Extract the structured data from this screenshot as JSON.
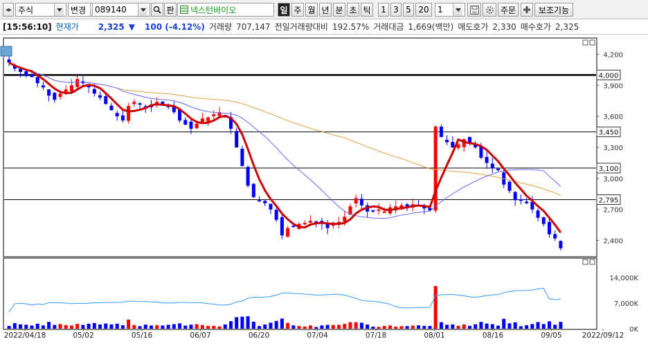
{
  "toolbar": {
    "market": "주식",
    "change_label": "변경",
    "code": "089140",
    "pan_label": "판",
    "stock_name": "넥스턴바이오",
    "periods": [
      "일",
      "주",
      "월",
      "년",
      "분",
      "초",
      "틱"
    ],
    "active_period": "일",
    "intervals": [
      "1",
      "3",
      "5",
      "20"
    ],
    "count": "1",
    "order_label": "주문",
    "aux_label": "보조기능"
  },
  "quote": {
    "time": "[15:56:10]",
    "price_label": "현재가",
    "price": "2,325",
    "change": "100 (-4.12%)",
    "volume_label": "거래량",
    "volume": "707,147",
    "prev_ratio_label": "전일거래량대비",
    "prev_ratio": "192.57%",
    "amount_label": "거래대금",
    "amount": "1,669(백만)",
    "ask_label": "매도호가",
    "ask": "2,330",
    "bid_label": "매수호가",
    "bid": "2,325"
  },
  "colors": {
    "up": "#ff0000",
    "down": "#0000ff",
    "ma5": "#cc0000",
    "ma20": "#6666ff",
    "ma60": "#e0a040",
    "volume_ma": "#3399ff"
  },
  "chart_data": {
    "type": "candlestick",
    "symbol": "089140",
    "name": "넥스턴바이오",
    "x_ticks": [
      "2022/04/18",
      "05/02",
      "05/16",
      "06/07",
      "06/20",
      "07/04",
      "07/18",
      "08/01",
      "08/16",
      "09/05",
      "2022/09/12"
    ],
    "price_axis": [
      "4,200",
      "3,900",
      "3,600",
      "3,300",
      "3,000",
      "2,700",
      "2,400"
    ],
    "price_levels": [
      4000,
      3450,
      3100,
      2795
    ],
    "price_level_labels": [
      "4,000",
      "3,450",
      "3,100",
      "2,795"
    ],
    "volume_axis": [
      "14,000K",
      "7,000K",
      "0K"
    ],
    "y_range": [
      2250,
      4350
    ],
    "volume_range_k": [
      0,
      18000
    ],
    "overlays": [
      "MA5",
      "MA20",
      "MA60"
    ],
    "volume_overlay": "volume MA",
    "notes_close": [
      4120,
      4060,
      4030,
      3990,
      3980,
      3920,
      3880,
      3800,
      3760,
      3820,
      3860,
      3900,
      3960,
      3920,
      3880,
      3820,
      3780,
      3720,
      3660,
      3600,
      3560,
      3700,
      3740,
      3720,
      3680,
      3700,
      3740,
      3720,
      3690,
      3640,
      3560,
      3520,
      3480,
      3530,
      3580,
      3590,
      3620,
      3640,
      3590,
      3480,
      3300,
      3120,
      2930,
      2820,
      2790,
      2760,
      2700,
      2600,
      2450,
      2520,
      2530,
      2560,
      2570,
      2590,
      2580,
      2560,
      2520,
      2560,
      2580,
      2630,
      2730,
      2810,
      2740,
      2680,
      2690,
      2700,
      2680,
      2720,
      2730,
      2740,
      2730,
      2750,
      2740,
      2710,
      2690,
      3500,
      3400,
      3350,
      3300,
      3330,
      3380,
      3350,
      3300,
      3200,
      3150,
      3100,
      3080,
      2940,
      2880,
      2790,
      2790,
      2760,
      2700,
      2620,
      2560,
      2460,
      2420,
      2325
    ]
  }
}
